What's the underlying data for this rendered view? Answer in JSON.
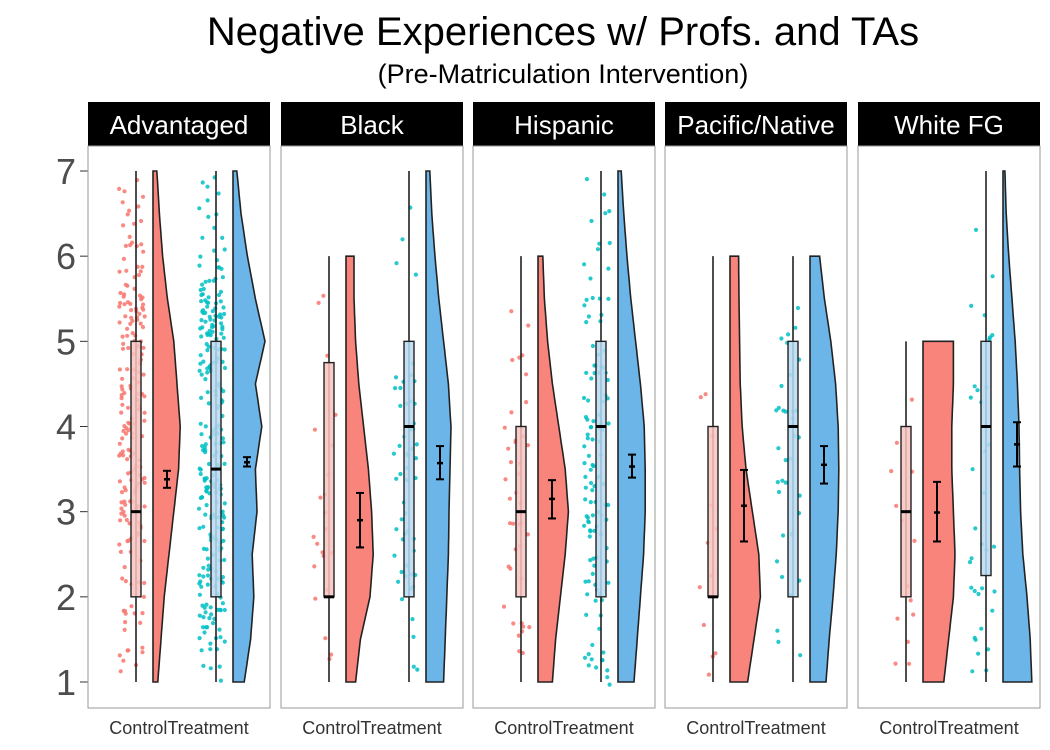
{
  "chart_data": {
    "type": "raincloud",
    "title": "Negative Experiences w/ Profs. and TAs",
    "subtitle": "(Pre-Matriculation Intervention)",
    "yticks": [
      1,
      2,
      3,
      4,
      5,
      6,
      7
    ],
    "ylim": [
      0.7,
      7.3
    ],
    "groups": [
      "Control",
      "Treatment"
    ],
    "colors": {
      "Control": "#f8766d",
      "Treatment": "#00bfc4",
      "ControlCloud": "#f8847c",
      "TreatmentCloud": "#6cb5e8"
    },
    "panels": [
      {
        "label": "Advantaged",
        "control": {
          "box": [
            1,
            2,
            3,
            5,
            7
          ],
          "mean": 3.38,
          "ci": [
            3.28,
            3.48
          ],
          "n": 200,
          "range": [
            1,
            7
          ],
          "density": [
            [
              1,
              0.15
            ],
            [
              1.5,
              0.25
            ],
            [
              2,
              0.35
            ],
            [
              2.5,
              0.5
            ],
            [
              3,
              0.65
            ],
            [
              3.5,
              0.8
            ],
            [
              4,
              0.85
            ],
            [
              4.5,
              0.75
            ],
            [
              5,
              0.65
            ],
            [
              5.5,
              0.45
            ],
            [
              6,
              0.3
            ],
            [
              6.5,
              0.2
            ],
            [
              7,
              0.12
            ]
          ]
        },
        "treatment": {
          "box": [
            1,
            2,
            3.5,
            5,
            7
          ],
          "mean": 3.58,
          "ci": [
            3.53,
            3.64
          ],
          "n": 300,
          "range": [
            1,
            7
          ],
          "density": [
            [
              1,
              0.35
            ],
            [
              1.5,
              0.55
            ],
            [
              2,
              0.65
            ],
            [
              2.5,
              0.6
            ],
            [
              3,
              0.75
            ],
            [
              3.5,
              0.7
            ],
            [
              4,
              0.9
            ],
            [
              4.5,
              0.7
            ],
            [
              5,
              1.0
            ],
            [
              5.5,
              0.7
            ],
            [
              6,
              0.45
            ],
            [
              6.5,
              0.25
            ],
            [
              7,
              0.12
            ]
          ]
        }
      },
      {
        "label": "Black",
        "control": {
          "box": [
            1,
            2,
            2,
            4.75,
            6
          ],
          "mean": 2.9,
          "ci": [
            2.58,
            3.22
          ],
          "n": 22,
          "range": [
            1,
            6
          ],
          "density": [
            [
              1,
              0.3
            ],
            [
              1.5,
              0.45
            ],
            [
              2,
              0.75
            ],
            [
              2.5,
              0.85
            ],
            [
              3,
              0.8
            ],
            [
              3.5,
              0.7
            ],
            [
              4,
              0.55
            ],
            [
              4.5,
              0.4
            ],
            [
              5,
              0.3
            ],
            [
              5.5,
              0.25
            ],
            [
              6,
              0.25
            ]
          ]
        },
        "treatment": {
          "box": [
            1,
            2,
            4,
            5,
            7
          ],
          "mean": 3.57,
          "ci": [
            3.38,
            3.77
          ],
          "n": 55,
          "range": [
            1,
            7
          ],
          "density": [
            [
              1,
              0.55
            ],
            [
              1.5,
              0.6
            ],
            [
              2,
              0.65
            ],
            [
              2.5,
              0.7
            ],
            [
              3,
              0.72
            ],
            [
              3.5,
              0.75
            ],
            [
              4,
              0.78
            ],
            [
              4.5,
              0.7
            ],
            [
              5,
              0.55
            ],
            [
              5.5,
              0.4
            ],
            [
              6,
              0.28
            ],
            [
              6.5,
              0.18
            ],
            [
              7,
              0.12
            ]
          ]
        }
      },
      {
        "label": "Hispanic",
        "control": {
          "box": [
            1,
            2,
            3,
            4,
            6
          ],
          "mean": 3.15,
          "ci": [
            2.92,
            3.37
          ],
          "n": 40,
          "range": [
            1,
            6
          ],
          "density": [
            [
              1,
              0.45
            ],
            [
              1.5,
              0.55
            ],
            [
              2,
              0.7
            ],
            [
              2.5,
              0.85
            ],
            [
              3,
              0.95
            ],
            [
              3.5,
              0.85
            ],
            [
              4,
              0.65
            ],
            [
              4.5,
              0.45
            ],
            [
              5,
              0.3
            ],
            [
              5.5,
              0.2
            ],
            [
              6,
              0.15
            ]
          ]
        },
        "treatment": {
          "box": [
            1,
            2,
            4,
            5,
            7
          ],
          "mean": 3.53,
          "ci": [
            3.4,
            3.67
          ],
          "n": 120,
          "range": [
            1,
            7
          ],
          "density": [
            [
              1,
              0.5
            ],
            [
              1.5,
              0.6
            ],
            [
              2,
              0.7
            ],
            [
              2.5,
              0.8
            ],
            [
              3,
              0.85
            ],
            [
              3.5,
              0.85
            ],
            [
              4,
              0.82
            ],
            [
              4.5,
              0.7
            ],
            [
              5,
              0.55
            ],
            [
              5.5,
              0.4
            ],
            [
              6,
              0.28
            ],
            [
              6.5,
              0.18
            ],
            [
              7,
              0.1
            ]
          ]
        }
      },
      {
        "label": "Pacific/Native",
        "control": {
          "box": [
            1,
            2,
            2,
            4,
            6
          ],
          "mean": 3.07,
          "ci": [
            2.65,
            3.49
          ],
          "n": 12,
          "range": [
            1,
            6
          ],
          "density": [
            [
              1,
              0.55
            ],
            [
              1.5,
              0.75
            ],
            [
              2,
              0.95
            ],
            [
              2.5,
              0.9
            ],
            [
              3,
              0.7
            ],
            [
              3.5,
              0.5
            ],
            [
              4,
              0.38
            ],
            [
              4.5,
              0.32
            ],
            [
              5,
              0.3
            ],
            [
              5.5,
              0.28
            ],
            [
              6,
              0.27
            ]
          ]
        },
        "treatment": {
          "box": [
            1,
            2,
            4,
            5,
            6
          ],
          "mean": 3.55,
          "ci": [
            3.33,
            3.77
          ],
          "n": 35,
          "range": [
            1,
            6
          ],
          "density": [
            [
              1,
              0.5
            ],
            [
              1.5,
              0.6
            ],
            [
              2,
              0.72
            ],
            [
              2.5,
              0.82
            ],
            [
              3,
              0.88
            ],
            [
              3.5,
              0.9
            ],
            [
              4,
              0.88
            ],
            [
              4.5,
              0.8
            ],
            [
              5,
              0.65
            ],
            [
              5.5,
              0.45
            ],
            [
              6,
              0.3
            ]
          ]
        }
      },
      {
        "label": "White FG",
        "control": {
          "box": [
            1,
            2,
            3,
            4,
            5
          ],
          "mean": 2.99,
          "ci": [
            2.65,
            3.35
          ],
          "n": 14,
          "range": [
            1,
            5
          ],
          "density": [
            [
              1,
              0.65
            ],
            [
              1.5,
              0.8
            ],
            [
              2,
              0.95
            ],
            [
              2.5,
              1.0
            ],
            [
              3,
              0.95
            ],
            [
              3.5,
              0.9
            ],
            [
              4,
              0.9
            ],
            [
              4.5,
              0.95
            ],
            [
              5,
              0.95
            ]
          ]
        },
        "treatment": {
          "box": [
            1,
            2.25,
            4,
            5,
            7
          ],
          "mean": 3.79,
          "ci": [
            3.53,
            4.05
          ],
          "n": 35,
          "range": [
            1,
            7
          ],
          "density": [
            [
              1,
              0.9
            ],
            [
              1.5,
              0.85
            ],
            [
              2,
              0.75
            ],
            [
              2.5,
              0.62
            ],
            [
              3,
              0.55
            ],
            [
              3.5,
              0.52
            ],
            [
              4,
              0.5
            ],
            [
              4.5,
              0.45
            ],
            [
              5,
              0.38
            ],
            [
              5.5,
              0.28
            ],
            [
              6,
              0.18
            ],
            [
              6.5,
              0.1
            ],
            [
              7,
              0.06
            ]
          ]
        }
      }
    ],
    "xtick_labels": [
      "Control",
      "Treatment"
    ],
    "grid": false,
    "legend": "none"
  }
}
